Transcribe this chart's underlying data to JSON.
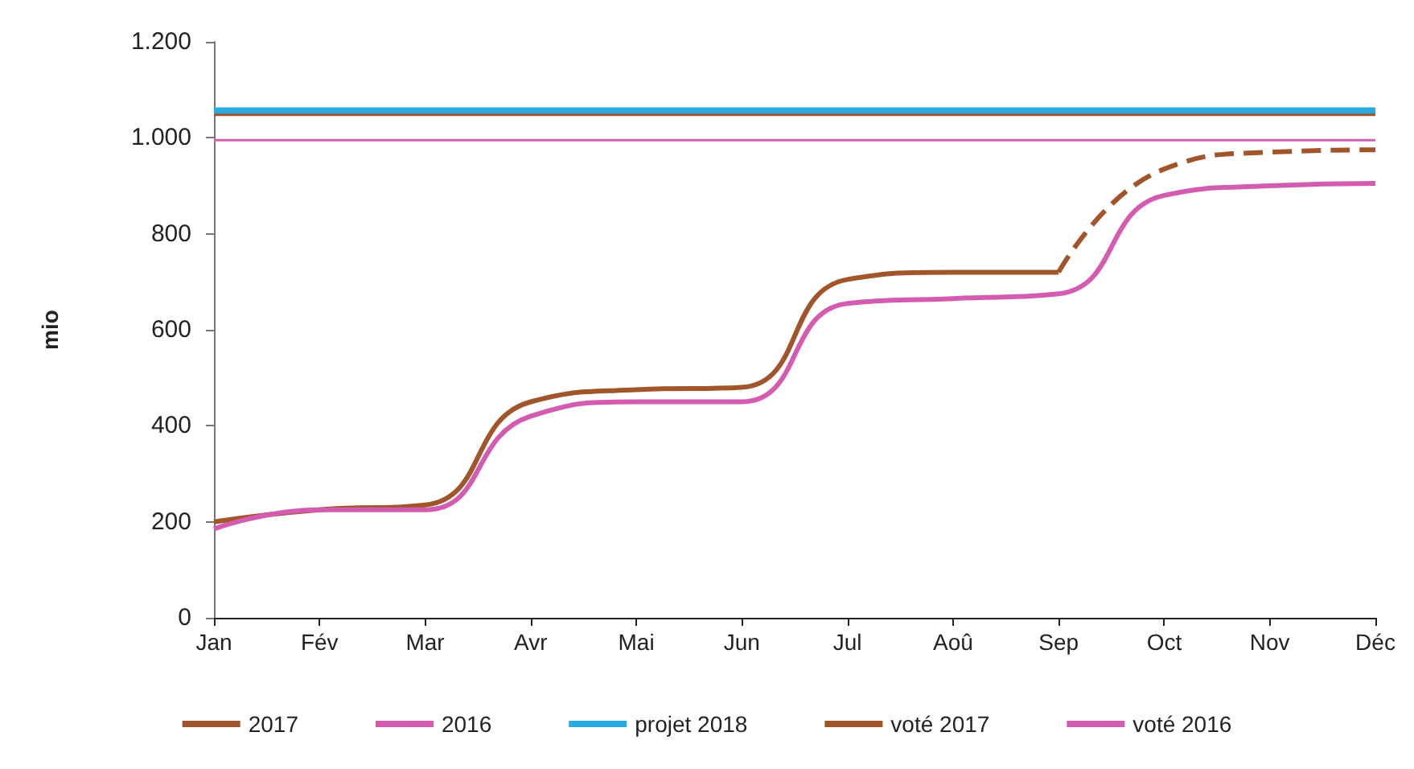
{
  "chart_data": {
    "type": "line",
    "ylabel": "mio",
    "categories": [
      "Jan",
      "Fév",
      "Mar",
      "Avr",
      "Mai",
      "Jun",
      "Jul",
      "Aoû",
      "Sep",
      "Oct",
      "Nov",
      "Déc"
    ],
    "ylim": [
      0,
      1200
    ],
    "yticks": [
      0,
      {
        "value": 200,
        "label": "200"
      },
      {
        "value": 400,
        "label": "400"
      },
      {
        "value": 600,
        "label": "600"
      },
      {
        "value": 800,
        "label": "800"
      },
      {
        "value": 1000,
        "label": "1.000"
      },
      {
        "value": 1200,
        "label": "1.200"
      }
    ],
    "grid": false,
    "legend": "bottom",
    "marker": "none",
    "series": [
      {
        "name": "2017",
        "color": "#a0552a",
        "line_style": "solid",
        "values": [
          200,
          225,
          235,
          450,
          475,
          480,
          705,
          720,
          720,
          null,
          null,
          null
        ]
      },
      {
        "name": "2016",
        "color": "#d45cb0",
        "line_style": "solid",
        "values": [
          185,
          225,
          225,
          420,
          450,
          450,
          655,
          665,
          675,
          880,
          900,
          905
        ]
      },
      {
        "name": "projet 2018",
        "color": "#29abe2",
        "line_style": "solid",
        "values": [
          1055,
          1055,
          1055,
          1055,
          1055,
          1055,
          1055,
          1055,
          1055,
          1055,
          1055,
          1055
        ]
      },
      {
        "name": "voté 2017",
        "color": "#a0552a",
        "line_style": "solid",
        "values": [
          1048,
          1048,
          1048,
          1048,
          1048,
          1048,
          1048,
          1048,
          1048,
          1048,
          1048,
          1048
        ]
      },
      {
        "name": "voté 2016",
        "color": "#d45cb0",
        "line_style": "solid",
        "values": [
          995,
          995,
          995,
          995,
          995,
          995,
          995,
          995,
          995,
          995,
          995,
          995
        ]
      },
      {
        "color": "#a0552a",
        "line_style": "dashed",
        "values": [
          null,
          null,
          null,
          null,
          null,
          null,
          null,
          null,
          720,
          935,
          970,
          975
        ]
      }
    ]
  }
}
